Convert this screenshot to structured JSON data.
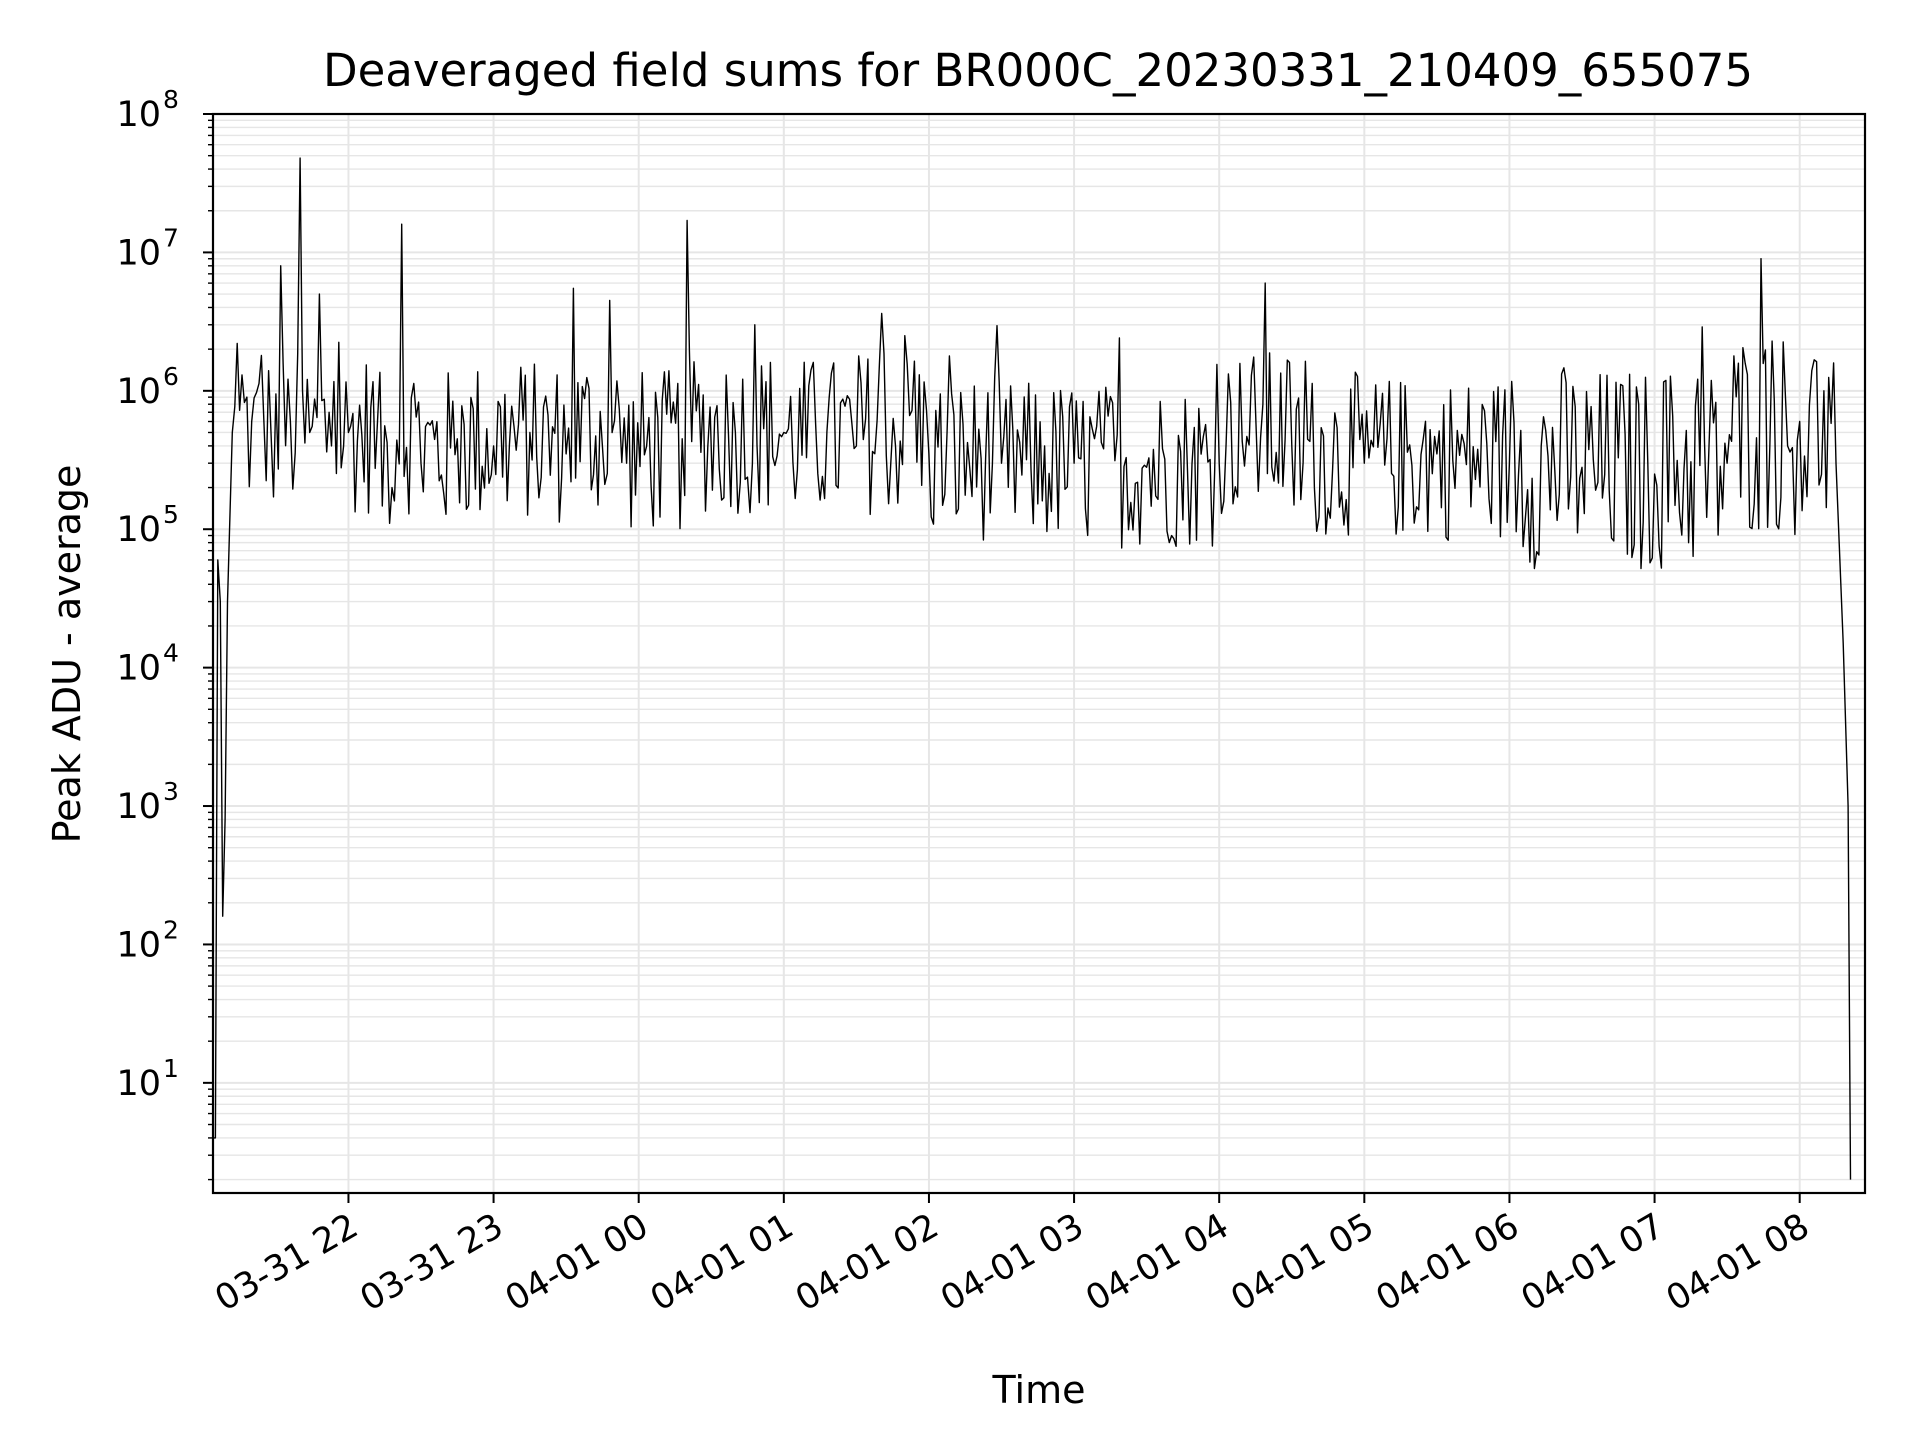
{
  "chart_data": {
    "type": "line",
    "title": "Deaveraged field sums for BR000C_20230331_210409_655075",
    "xlabel": "Time",
    "ylabel": "Peak ADU - average",
    "yscale": "log",
    "ylim": [
      1.6,
      100000000
    ],
    "xlim": [
      "2023-03-31 21:04",
      "2023-04-01 08:27"
    ],
    "x_ticks": [
      {
        "time": "2023-03-31 22:00",
        "label": "03-31 22"
      },
      {
        "time": "2023-03-31 23:00",
        "label": "03-31 23"
      },
      {
        "time": "2023-04-01 00:00",
        "label": "04-01 00"
      },
      {
        "time": "2023-04-01 01:00",
        "label": "04-01 01"
      },
      {
        "time": "2023-04-01 02:00",
        "label": "04-01 02"
      },
      {
        "time": "2023-04-01 03:00",
        "label": "04-01 03"
      },
      {
        "time": "2023-04-01 04:00",
        "label": "04-01 04"
      },
      {
        "time": "2023-04-01 05:00",
        "label": "04-01 05"
      },
      {
        "time": "2023-04-01 06:00",
        "label": "04-01 06"
      },
      {
        "time": "2023-04-01 07:00",
        "label": "04-01 07"
      },
      {
        "time": "2023-04-01 08:00",
        "label": "04-01 08"
      }
    ],
    "y_ticks": [
      {
        "value": 10,
        "base": "10",
        "exp": "1"
      },
      {
        "value": 100,
        "base": "10",
        "exp": "2"
      },
      {
        "value": 1000,
        "base": "10",
        "exp": "3"
      },
      {
        "value": 10000,
        "base": "10",
        "exp": "4"
      },
      {
        "value": 100000,
        "base": "10",
        "exp": "5"
      },
      {
        "value": 1000000,
        "base": "10",
        "exp": "6"
      },
      {
        "value": 10000000,
        "base": "10",
        "exp": "7"
      },
      {
        "value": 100000000,
        "base": "10",
        "exp": "8"
      }
    ],
    "grid": true,
    "line_color": "#000000",
    "grid_color": "#e6e6e6",
    "series": [
      {
        "points": [
          [
            "2023-03-31 21:04",
            4
          ],
          [
            "2023-03-31 21:05",
            4
          ],
          [
            "2023-03-31 21:06",
            60000
          ],
          [
            "2023-03-31 21:07",
            30000
          ],
          [
            "2023-03-31 21:08",
            160
          ],
          [
            "2023-03-31 21:09",
            800
          ],
          [
            "2023-03-31 21:10",
            30000
          ],
          [
            "2023-03-31 21:12",
            500000
          ],
          [
            "2023-03-31 21:14",
            2200000
          ],
          [
            "2023-03-31 21:16",
            1300000
          ],
          [
            "2023-03-31 21:18",
            900000
          ],
          [
            "2023-03-31 21:20",
            600000
          ],
          [
            "2023-03-31 21:24",
            1800000
          ],
          [
            "2023-03-31 21:28",
            500000
          ],
          [
            "2023-03-31 21:32",
            8000000
          ],
          [
            "2023-03-31 21:36",
            600000
          ],
          [
            "2023-03-31 21:40",
            48000000
          ],
          [
            "2023-03-31 21:44",
            500000
          ],
          [
            "2023-03-31 21:48",
            5000000
          ],
          [
            "2023-03-31 21:52",
            700000
          ],
          [
            "2023-03-31 22:00",
            500000
          ],
          [
            "2023-03-31 22:12",
            600000
          ],
          [
            "2023-03-31 22:18",
            200000
          ],
          [
            "2023-03-31 22:22",
            16000000
          ],
          [
            "2023-03-31 22:30",
            300000
          ],
          [
            "2023-03-31 22:45",
            450000
          ],
          [
            "2023-03-31 23:00",
            400000
          ],
          [
            "2023-03-31 23:15",
            500000
          ],
          [
            "2023-03-31 23:30",
            350000
          ],
          [
            "2023-03-31 23:33",
            5500000
          ],
          [
            "2023-03-31 23:45",
            400000
          ],
          [
            "2023-03-31 23:48",
            4500000
          ],
          [
            "2023-03-31 23:55",
            300000
          ],
          [
            "2023-04-01 00:18",
            450000
          ],
          [
            "2023-04-01 00:20",
            17000000
          ],
          [
            "2023-04-01 00:40",
            500000
          ],
          [
            "2023-04-01 00:48",
            3000000
          ],
          [
            "2023-04-01 01:00",
            500000
          ],
          [
            "2023-04-01 01:30",
            400000
          ],
          [
            "2023-04-01 01:50",
            2500000
          ],
          [
            "2023-04-01 02:00",
            350000
          ],
          [
            "2023-04-01 02:30",
            300000
          ],
          [
            "2023-04-01 03:00",
            300000
          ],
          [
            "2023-04-01 03:30",
            280000
          ],
          [
            "2023-04-01 04:00",
            300000
          ],
          [
            "2023-04-01 04:19",
            6000000
          ],
          [
            "2023-04-01 04:30",
            400000
          ],
          [
            "2023-04-01 05:00",
            300000
          ],
          [
            "2023-04-01 05:30",
            350000
          ],
          [
            "2023-04-01 06:00",
            300000
          ],
          [
            "2023-04-01 06:30",
            280000
          ],
          [
            "2023-04-01 07:00",
            250000
          ],
          [
            "2023-04-01 07:30",
            300000
          ],
          [
            "2023-04-01 07:44",
            9000000
          ],
          [
            "2023-04-01 07:55",
            400000
          ],
          [
            "2023-04-01 08:00",
            600000
          ],
          [
            "2023-04-01 08:05",
            1400000
          ],
          [
            "2023-04-01 08:10",
            1000000
          ],
          [
            "2023-04-01 08:15",
            300000
          ],
          [
            "2023-04-01 08:18",
            15000
          ],
          [
            "2023-04-01 08:20",
            1000
          ],
          [
            "2023-04-01 08:21",
            2
          ]
        ]
      }
    ]
  }
}
